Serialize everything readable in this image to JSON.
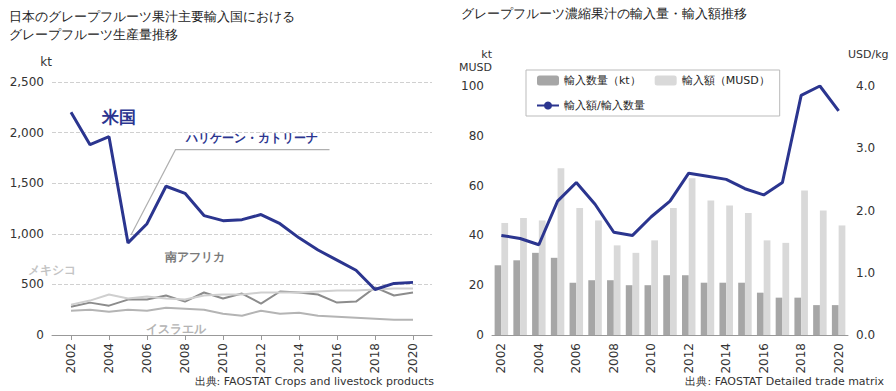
{
  "chart_data": [
    {
      "type": "line",
      "title": "日本のグレープフルーツ果汁主要輸入国における\nグレープフルーツ生産量推移",
      "source": "出典: FAOSTAT Crops and livestock products",
      "ylabel": "kt",
      "x": [
        2002,
        2003,
        2004,
        2005,
        2006,
        2007,
        2008,
        2009,
        2010,
        2011,
        2012,
        2013,
        2014,
        2015,
        2016,
        2017,
        2018,
        2019,
        2020
      ],
      "xlim": [
        2001,
        2021
      ],
      "xticks": [
        2002,
        2004,
        2006,
        2008,
        2010,
        2012,
        2014,
        2016,
        2018,
        2020
      ],
      "ylim": [
        0,
        2500
      ],
      "yticks": [
        0,
        500,
        {
          "value": 1000,
          "label": "1,000"
        },
        {
          "value": 1500,
          "label": "1,500"
        },
        {
          "value": 2000,
          "label": "2,000"
        },
        {
          "value": 2500,
          "label": "2,500"
        }
      ],
      "grid": true,
      "series": [
        {
          "name": "米国",
          "color": "#2b358f",
          "values": [
            2200,
            1880,
            1960,
            910,
            1100,
            1470,
            1400,
            1180,
            1130,
            1140,
            1190,
            1100,
            960,
            840,
            740,
            640,
            450,
            510,
            520
          ]
        },
        {
          "name": "メキシコ",
          "color": "#cfcfcf",
          "values": [
            300,
            340,
            400,
            360,
            380,
            360,
            350,
            390,
            400,
            400,
            420,
            420,
            420,
            430,
            440,
            440,
            450,
            460,
            460
          ]
        },
        {
          "name": "南アフリカ",
          "color": "#8c8c8c",
          "values": [
            280,
            320,
            290,
            350,
            350,
            390,
            330,
            420,
            360,
            410,
            310,
            430,
            420,
            400,
            320,
            330,
            470,
            390,
            420
          ]
        },
        {
          "name": "イスラエル",
          "color": "#b4b4b4",
          "values": [
            240,
            250,
            230,
            250,
            240,
            270,
            260,
            250,
            210,
            190,
            240,
            210,
            220,
            190,
            180,
            170,
            160,
            150,
            150
          ]
        }
      ],
      "annotations": [
        {
          "text": "米国",
          "x": 2004.5,
          "y": 2150,
          "color": "#2b358f"
        },
        {
          "text": "ハリケーン・カトリーナ",
          "x": 2011.5,
          "y": 1950,
          "color": "#2b358f",
          "arrow_to": [
            2005,
            910
          ]
        },
        {
          "text": "メキシコ",
          "x": 2001,
          "y": 640,
          "color": "#c4c4c4"
        },
        {
          "text": "南アフリカ",
          "x": 2008.5,
          "y": 770,
          "color": "#7a7a7a"
        },
        {
          "text": "イスラエル",
          "x": 2007.5,
          "y": 60,
          "color": "#b4b4b4"
        }
      ]
    },
    {
      "type": "bar",
      "title": "グレープフルーツ濃縮果汁の輸入量・輸入額推移",
      "source": "出典: FAOSTAT Detailed trade matrix",
      "ylabel": "kt\nMUSD",
      "y2label": "USD/kg",
      "categories": [
        "2002",
        null,
        "2004",
        null,
        "2006",
        null,
        "2008",
        null,
        "2010",
        null,
        "2012",
        null,
        "2014",
        null,
        "2016",
        null,
        "2018",
        null,
        "2020"
      ],
      "ylim": [
        0,
        100
      ],
      "yticks": [
        0,
        20,
        40,
        60,
        80,
        100
      ],
      "y2lim": [
        0,
        4
      ],
      "y2ticks": [
        {
          "value": 0,
          "label": "0.0"
        },
        {
          "value": 1,
          "label": "1.0"
        },
        {
          "value": 2,
          "label": "2.0"
        },
        {
          "value": 3,
          "label": "3.0"
        },
        {
          "value": 4,
          "label": "4.0"
        }
      ],
      "grid": false,
      "legend": "top",
      "series": [
        {
          "name": "輸入数量（kt）",
          "type": "bar",
          "color": "#a6a6a6",
          "values": [
            28,
            30,
            33,
            31,
            21,
            22,
            22,
            20,
            20,
            24,
            24,
            21,
            21,
            21,
            17,
            15,
            15,
            12,
            12
          ]
        },
        {
          "name": "輸入額（MUSD）",
          "type": "bar",
          "color": "#d9d9d9",
          "values": [
            45,
            47,
            46,
            67,
            51,
            46,
            36,
            33,
            38,
            51,
            63,
            54,
            52,
            49,
            38,
            37,
            58,
            50,
            44
          ]
        },
        {
          "name": "輸入額/輸入数量",
          "type": "line",
          "axis": "y2",
          "color": "#2b358f",
          "values": [
            1.6,
            1.55,
            1.45,
            2.15,
            2.45,
            2.1,
            1.65,
            1.6,
            1.9,
            2.15,
            2.6,
            2.55,
            2.5,
            2.35,
            2.25,
            2.45,
            3.85,
            4.0,
            3.6
          ]
        }
      ]
    }
  ]
}
